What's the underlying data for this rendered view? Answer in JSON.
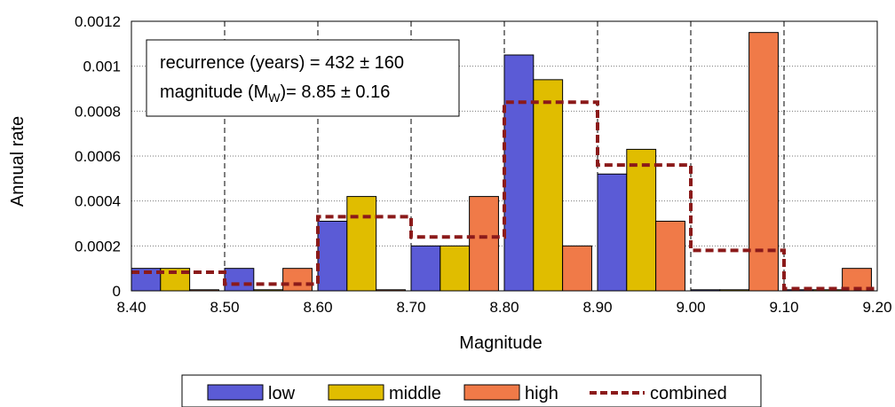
{
  "chart_data": {
    "type": "bar",
    "x_ticks": [
      "8.40",
      "8.50",
      "8.60",
      "8.70",
      "8.80",
      "8.90",
      "9.00",
      "9.10",
      "9.20"
    ],
    "bins": [
      8.4,
      8.5,
      8.6,
      8.7,
      8.8,
      8.9,
      9.0,
      9.1
    ],
    "bin_width": 0.1,
    "xlim": [
      8.4,
      9.2
    ],
    "ylim": [
      0,
      0.0012
    ],
    "y_ticks": [
      "0",
      "0.0002",
      "0.0004",
      "0.0006",
      "0.0008",
      "0.001",
      "0.0012"
    ],
    "xlabel": "Magnitude",
    "ylabel": "Annual rate",
    "series": [
      {
        "name": "low",
        "color": "#5b5bd6",
        "values": [
          0.0001,
          0.0001,
          0.00031,
          0.0002,
          0.00105,
          0.00052,
          0.0,
          0.0
        ]
      },
      {
        "name": "middle",
        "color": "#e0bd00",
        "values": [
          0.0001,
          0.0,
          0.00042,
          0.0002,
          0.00094,
          0.00063,
          0.0,
          0.0
        ]
      },
      {
        "name": "high",
        "color": "#f07a48",
        "values": [
          0.0,
          0.0001,
          0.0,
          0.00042,
          0.0002,
          0.00031,
          0.00115,
          0.0001
        ]
      }
    ],
    "combined": {
      "name": "combined",
      "color": "#8b1a1a",
      "values": [
        8.3e-05,
        3e-05,
        0.00033,
        0.00024,
        0.00084,
        0.00056,
        0.00018,
        1e-05
      ]
    },
    "grid": {
      "horizontal": "dotted",
      "vertical": "dashed"
    },
    "legend_placement": "bottom"
  },
  "annotation": {
    "line1": "recurrence (years) = 432 ± 160",
    "line2_prefix": "magnitude (M",
    "line2_sub": "W",
    "line2_suffix": ")= 8.85 ± 0.16"
  }
}
